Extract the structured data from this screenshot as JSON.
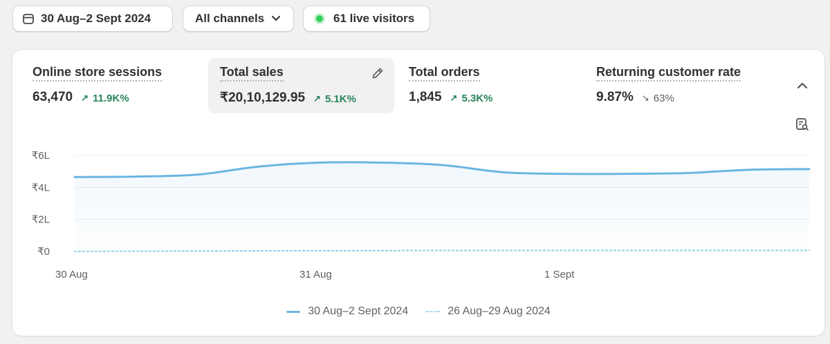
{
  "filters": {
    "date_range": "30 Aug–2 Sept 2024",
    "channel": "All channels",
    "live_visitors": "61 live visitors"
  },
  "metrics": [
    {
      "label": "Online store sessions",
      "value": "63,470",
      "change": "11.9K%",
      "direction": "up",
      "active": false
    },
    {
      "label": "Total sales",
      "value": "₹20,10,129.95",
      "change": "5.1K%",
      "direction": "up",
      "active": true
    },
    {
      "label": "Total orders",
      "value": "1,845",
      "change": "5.3K%",
      "direction": "up",
      "active": false
    },
    {
      "label": "Returning customer rate",
      "value": "9.87%",
      "change": "63%",
      "direction": "down",
      "active": false
    }
  ],
  "icons": {
    "calendar": "calendar-icon",
    "chevron": "chevron-down-icon",
    "live": "live-dot-icon",
    "edit": "pencil-icon",
    "collapse": "chevron-up-icon",
    "explore": "explore-report-icon"
  },
  "colors": {
    "current_series": "#6bb5e2",
    "comparison_series": "#8bd0ec",
    "positive": "#29845a",
    "live": "#33d05c"
  },
  "chart_data": {
    "type": "line",
    "y_ticks": [
      "₹6L",
      "₹4L",
      "₹2L",
      "₹0"
    ],
    "y_tick_values": [
      600000,
      400000,
      200000,
      0
    ],
    "x_tick_labels": [
      "30 Aug",
      "31 Aug",
      "1 Sept"
    ],
    "ylim": [
      0,
      600000
    ],
    "grid": true,
    "legend_position": "bottom",
    "series": [
      {
        "name": "30 Aug–2 Sept 2024",
        "style": "solid",
        "x": [
          0,
          1,
          2,
          3,
          4,
          5,
          6,
          7,
          8,
          9,
          10,
          11,
          12
        ],
        "values": [
          465000,
          468000,
          480000,
          530000,
          555000,
          555000,
          540000,
          495000,
          485000,
          485000,
          490000,
          510000,
          515000
        ]
      },
      {
        "name": "26 Aug–29 Aug 2024",
        "style": "dotted",
        "x": [
          0,
          1,
          2,
          3,
          4,
          5,
          6,
          7,
          8,
          9,
          10,
          11,
          12
        ],
        "values": [
          0,
          1500,
          3000,
          4000,
          5000,
          6000,
          6500,
          7000,
          7500,
          7500,
          7500,
          7500,
          7500
        ]
      }
    ]
  }
}
